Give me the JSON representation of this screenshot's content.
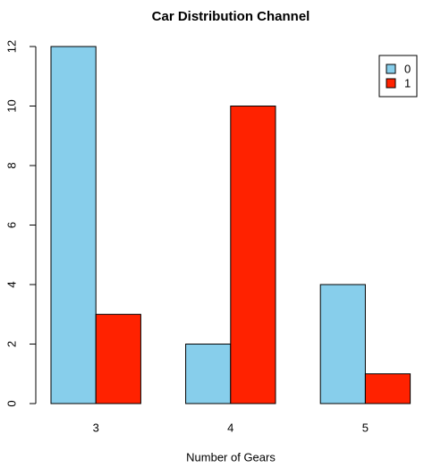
{
  "chart_data": {
    "type": "grouped_bar",
    "title": "Car Distribution Channel",
    "x_label": "Number of Gears",
    "categories": [
      "3",
      "4",
      "5"
    ],
    "series": [
      {
        "name": "0",
        "color": "#87ceeb",
        "values": [
          12,
          2,
          4
        ]
      },
      {
        "name": "1",
        "color": "#ff2200",
        "values": [
          3,
          10,
          1
        ]
      }
    ],
    "ylim": [
      0,
      12
    ],
    "yticks": [
      0,
      2,
      4,
      6,
      8,
      10,
      12
    ],
    "legend": "top-right"
  }
}
